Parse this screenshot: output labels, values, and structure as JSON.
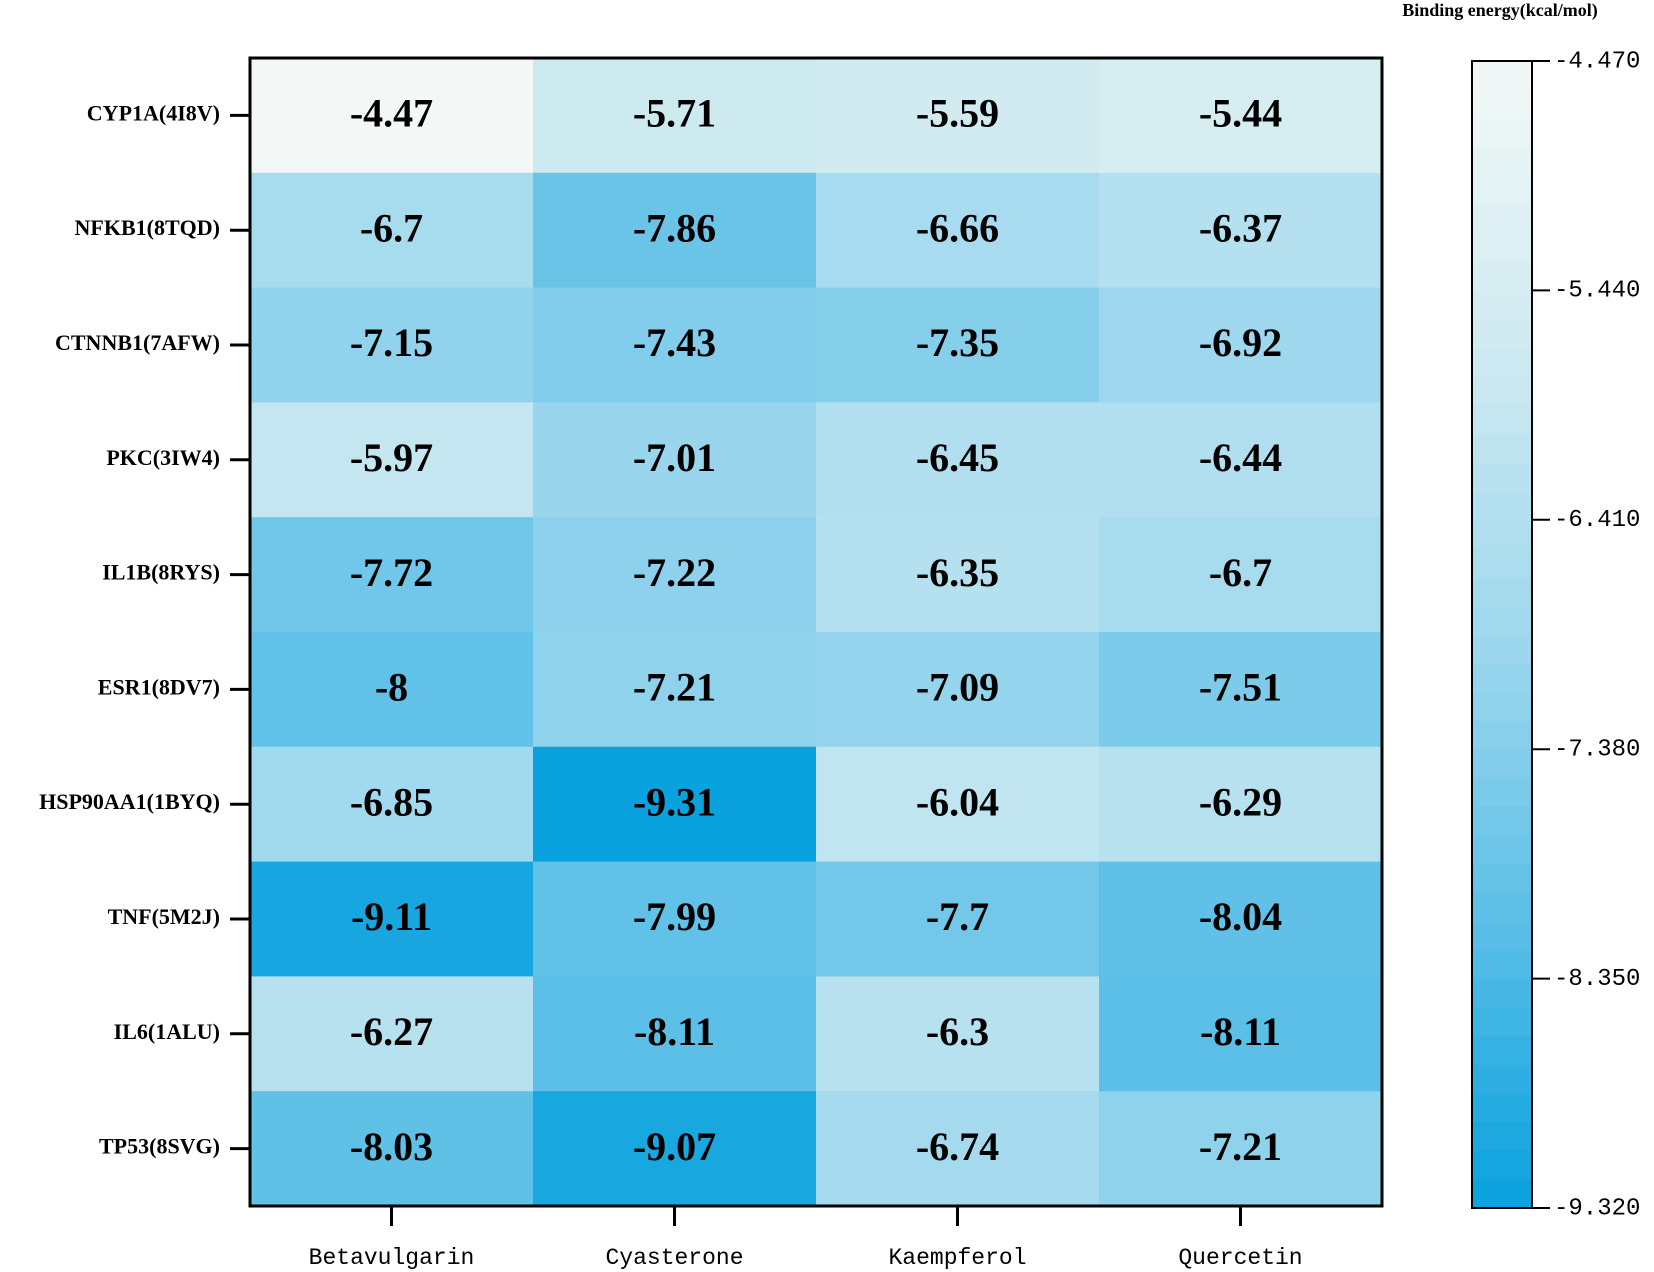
{
  "chart_data": {
    "type": "heatmap",
    "colorbar_title": "Binding energy(kcal/mol)",
    "rows": [
      "CYP1A(4I8V)",
      "NFKB1(8TQD)",
      "CTNNB1(7AFW)",
      "PKC(3IW4)",
      "IL1B(8RYS)",
      "ESR1(8DV7)",
      "HSP90AA1(1BYQ)",
      "TNF(5M2J)",
      "IL6(1ALU)",
      "TP53(8SVG)"
    ],
    "columns": [
      "Betavulgarin",
      "Cyasterone",
      "Kaempferol",
      "Quercetin"
    ],
    "values": [
      [
        -4.47,
        -5.71,
        -5.59,
        -5.44
      ],
      [
        -6.7,
        -7.86,
        -6.66,
        -6.37
      ],
      [
        -7.15,
        -7.43,
        -7.35,
        -6.92
      ],
      [
        -5.97,
        -7.01,
        -6.45,
        -6.44
      ],
      [
        -7.72,
        -7.22,
        -6.35,
        -6.7
      ],
      [
        -8,
        -7.21,
        -7.09,
        -7.51
      ],
      [
        -6.85,
        -9.31,
        -6.04,
        -6.29
      ],
      [
        -9.11,
        -7.99,
        -7.7,
        -8.04
      ],
      [
        -6.27,
        -8.11,
        -6.3,
        -8.11
      ],
      [
        -8.03,
        -9.07,
        -6.74,
        -7.21
      ]
    ],
    "clim": [
      -9.32,
      -4.47
    ],
    "cticks": [
      {
        "value": -4.47,
        "label": "-4.470"
      },
      {
        "value": -5.44,
        "label": "-5.440"
      },
      {
        "value": -6.41,
        "label": "-6.410"
      },
      {
        "value": -7.38,
        "label": "-7.380"
      },
      {
        "value": -8.35,
        "label": "-8.350"
      },
      {
        "value": -9.32,
        "label": "-9.320"
      }
    ],
    "colorscale": [
      "#08a1de",
      "#5cbfe7",
      "#9fd8ee",
      "#cfeaf1",
      "#f3f8f7"
    ]
  }
}
